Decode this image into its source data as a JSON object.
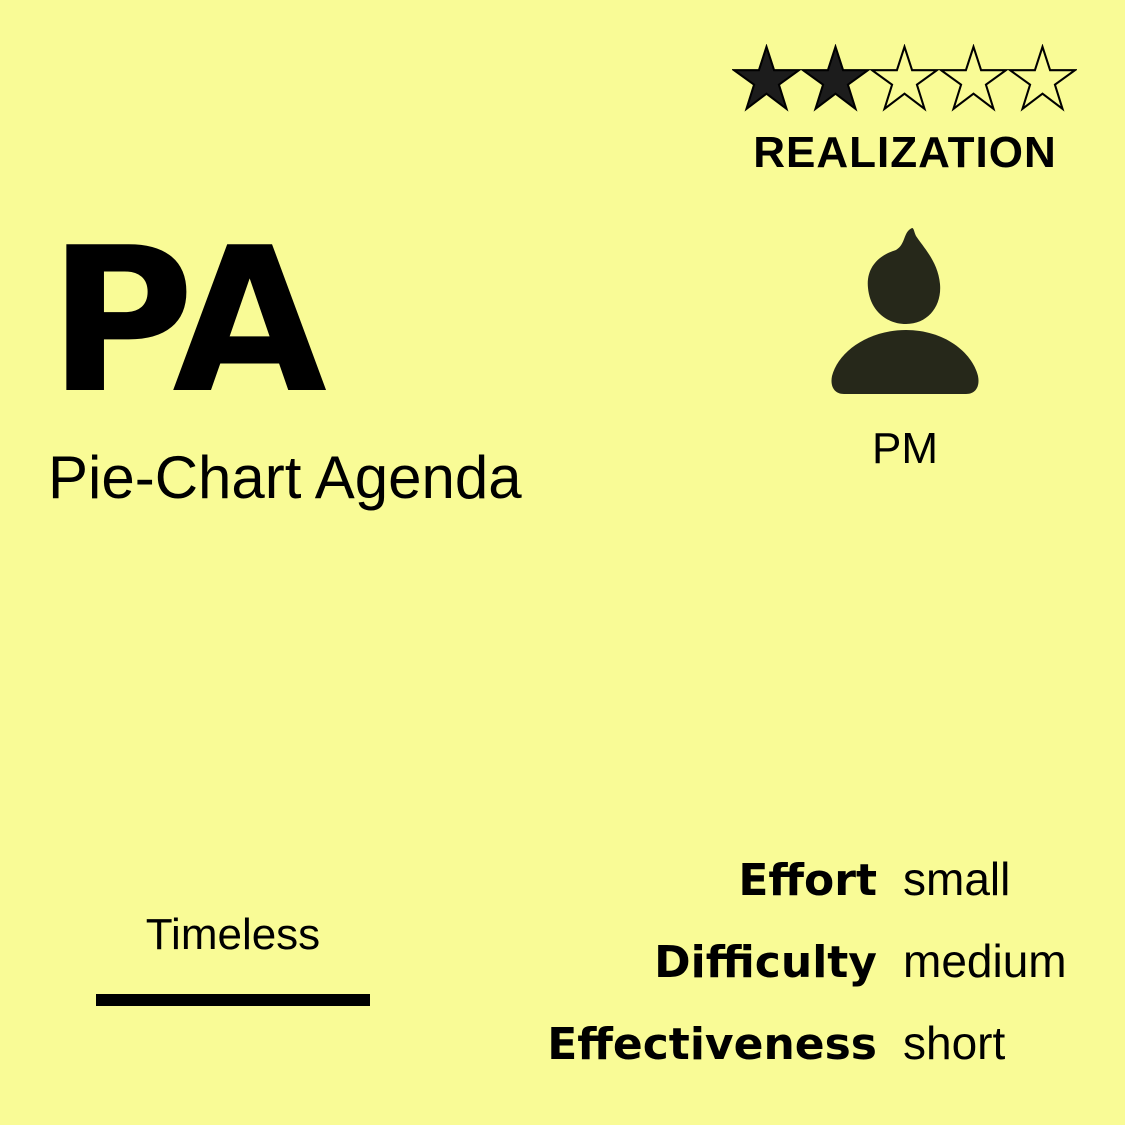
{
  "card": {
    "background_color": "#f9fb96",
    "rating": {
      "value": 2,
      "max": 5,
      "filled_icon": "filled-star-icon",
      "empty_icon": "empty-star-icon"
    },
    "category": "REALIZATION",
    "abbreviation": "PA",
    "full_name": "Pie-Chart Agenda",
    "role": {
      "icon": "person-icon",
      "label": "PM",
      "icon_color": "#26281a"
    },
    "timeframe": "Timeless",
    "metrics": [
      {
        "key": "Effort",
        "value": "small"
      },
      {
        "key": "Difficulty",
        "value": "medium"
      },
      {
        "key": "Effectiveness",
        "value": "short"
      }
    ]
  }
}
